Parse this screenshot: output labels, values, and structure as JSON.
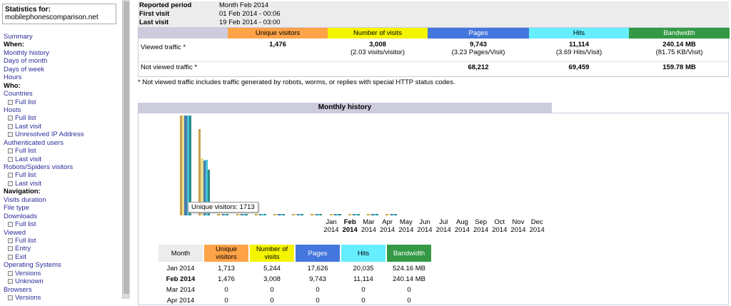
{
  "sidebar": {
    "stats_label": "Statistics for:",
    "site": "mobilephonescomparison.net",
    "menu": [
      {
        "label": "Summary",
        "kind": "link"
      },
      {
        "label": "When:",
        "kind": "head"
      },
      {
        "label": "Monthly history",
        "kind": "link"
      },
      {
        "label": "Days of month",
        "kind": "link"
      },
      {
        "label": "Days of week",
        "kind": "link"
      },
      {
        "label": "Hours",
        "kind": "link"
      },
      {
        "label": "Who:",
        "kind": "head"
      },
      {
        "label": "Countries",
        "kind": "link"
      },
      {
        "label": "Full list",
        "kind": "sub"
      },
      {
        "label": "Hosts",
        "kind": "link"
      },
      {
        "label": "Full list",
        "kind": "sub"
      },
      {
        "label": "Last visit",
        "kind": "sub"
      },
      {
        "label": "Unresolved IP Address",
        "kind": "sub"
      },
      {
        "label": "Authenticated users",
        "kind": "link"
      },
      {
        "label": "Full list",
        "kind": "sub"
      },
      {
        "label": "Last visit",
        "kind": "sub"
      },
      {
        "label": "Robots/Spiders visitors",
        "kind": "link"
      },
      {
        "label": "Full list",
        "kind": "sub"
      },
      {
        "label": "Last visit",
        "kind": "sub"
      },
      {
        "label": "Navigation:",
        "kind": "head"
      },
      {
        "label": "Visits duration",
        "kind": "link"
      },
      {
        "label": "File type",
        "kind": "link"
      },
      {
        "label": "Downloads",
        "kind": "link"
      },
      {
        "label": "Full list",
        "kind": "sub"
      },
      {
        "label": "Viewed",
        "kind": "link"
      },
      {
        "label": "Full list",
        "kind": "sub"
      },
      {
        "label": "Entry",
        "kind": "sub"
      },
      {
        "label": "Exit",
        "kind": "sub"
      },
      {
        "label": "Operating Systems",
        "kind": "link"
      },
      {
        "label": "Versions",
        "kind": "sub"
      },
      {
        "label": "Unknown",
        "kind": "sub"
      },
      {
        "label": "Browsers",
        "kind": "link"
      },
      {
        "label": "Versions",
        "kind": "sub"
      }
    ]
  },
  "info": {
    "reported_period_label": "Reported period",
    "reported_period_value": "Month Feb 2014",
    "first_visit_label": "First visit",
    "first_visit_value": "01 Feb 2014 - 00:06",
    "last_visit_label": "Last visit",
    "last_visit_value": "19 Feb 2014 - 03:00"
  },
  "summary": {
    "headers": [
      "Unique visitors",
      "Number of visits",
      "Pages",
      "Hits",
      "Bandwidth"
    ],
    "header_colors": [
      "#ffa348",
      "#f4f400",
      "#4477dd",
      "#66eeff",
      "#339944"
    ],
    "viewed_label": "Viewed traffic *",
    "viewed_values": [
      "1,476",
      "3,008",
      "9,743",
      "11,114",
      "240.14 MB"
    ],
    "viewed_subs": [
      "",
      "(2.03 visits/visitor)",
      "(3.23 Pages/Visit)",
      "(3.69 Hits/Visit)",
      "(81.75 KB/Visit)"
    ],
    "not_viewed_label": "Not viewed traffic *",
    "not_viewed_values": [
      "",
      "",
      "68,212",
      "69,459",
      "159.78 MB"
    ],
    "note": "* Not viewed traffic includes traffic generated by robots, worms, or replies with special HTTP status codes."
  },
  "monthly": {
    "title": "Monthly history",
    "tooltip": "Unique visitors: 1713",
    "months": [
      {
        "m": "Jan",
        "y": "2014"
      },
      {
        "m": "Feb",
        "y": "2014"
      },
      {
        "m": "Mar",
        "y": "2014"
      },
      {
        "m": "Apr",
        "y": "2014"
      },
      {
        "m": "May",
        "y": "2014"
      },
      {
        "m": "Jun",
        "y": "2014"
      },
      {
        "m": "Jul",
        "y": "2014"
      },
      {
        "m": "Aug",
        "y": "2014"
      },
      {
        "m": "Sep",
        "y": "2014"
      },
      {
        "m": "Oct",
        "y": "2014"
      },
      {
        "m": "Nov",
        "y": "2014"
      },
      {
        "m": "Dec",
        "y": "2014"
      }
    ],
    "current_month_index": 1,
    "table_headers": [
      "Month",
      "Unique visitors",
      "Number of visits",
      "Pages",
      "Hits",
      "Bandwidth"
    ],
    "table_header_colors": [
      "#ececec",
      "#ffa348",
      "#f4f400",
      "#4477dd",
      "#66eeff",
      "#339944"
    ],
    "rows": [
      [
        "Jan 2014",
        "1,713",
        "5,244",
        "17,626",
        "20,035",
        "524.16 MB"
      ],
      [
        "Feb 2014",
        "1,476",
        "3,008",
        "9,743",
        "11,114",
        "240.14 MB"
      ],
      [
        "Mar 2014",
        "0",
        "0",
        "0",
        "0",
        "0"
      ],
      [
        "Apr 2014",
        "0",
        "0",
        "0",
        "0",
        "0"
      ]
    ]
  },
  "chart_data": {
    "type": "bar",
    "categories": [
      "Jan 2014",
      "Feb 2014",
      "Mar 2014",
      "Apr 2014",
      "May 2014",
      "Jun 2014",
      "Jul 2014",
      "Aug 2014",
      "Sep 2014",
      "Oct 2014",
      "Nov 2014",
      "Dec 2014"
    ],
    "series": [
      {
        "name": "Unique visitors",
        "color": "#c8a050",
        "values": [
          1713,
          1476,
          0,
          0,
          0,
          0,
          0,
          0,
          0,
          0,
          0,
          0
        ]
      },
      {
        "name": "Number of visits",
        "color": "#e8e090",
        "values": [
          5244,
          3008,
          0,
          0,
          0,
          0,
          0,
          0,
          0,
          0,
          0,
          0
        ]
      },
      {
        "name": "Pages",
        "color": "#4a7ab0",
        "values": [
          17626,
          9743,
          0,
          0,
          0,
          0,
          0,
          0,
          0,
          0,
          0,
          0
        ]
      },
      {
        "name": "Hits",
        "color": "#44c4d4",
        "values": [
          20035,
          11114,
          0,
          0,
          0,
          0,
          0,
          0,
          0,
          0,
          0,
          0
        ]
      },
      {
        "name": "Bandwidth",
        "color": "#2a8a8a",
        "values": [
          524.16,
          240.14,
          0,
          0,
          0,
          0,
          0,
          0,
          0,
          0,
          0,
          0
        ]
      }
    ]
  }
}
